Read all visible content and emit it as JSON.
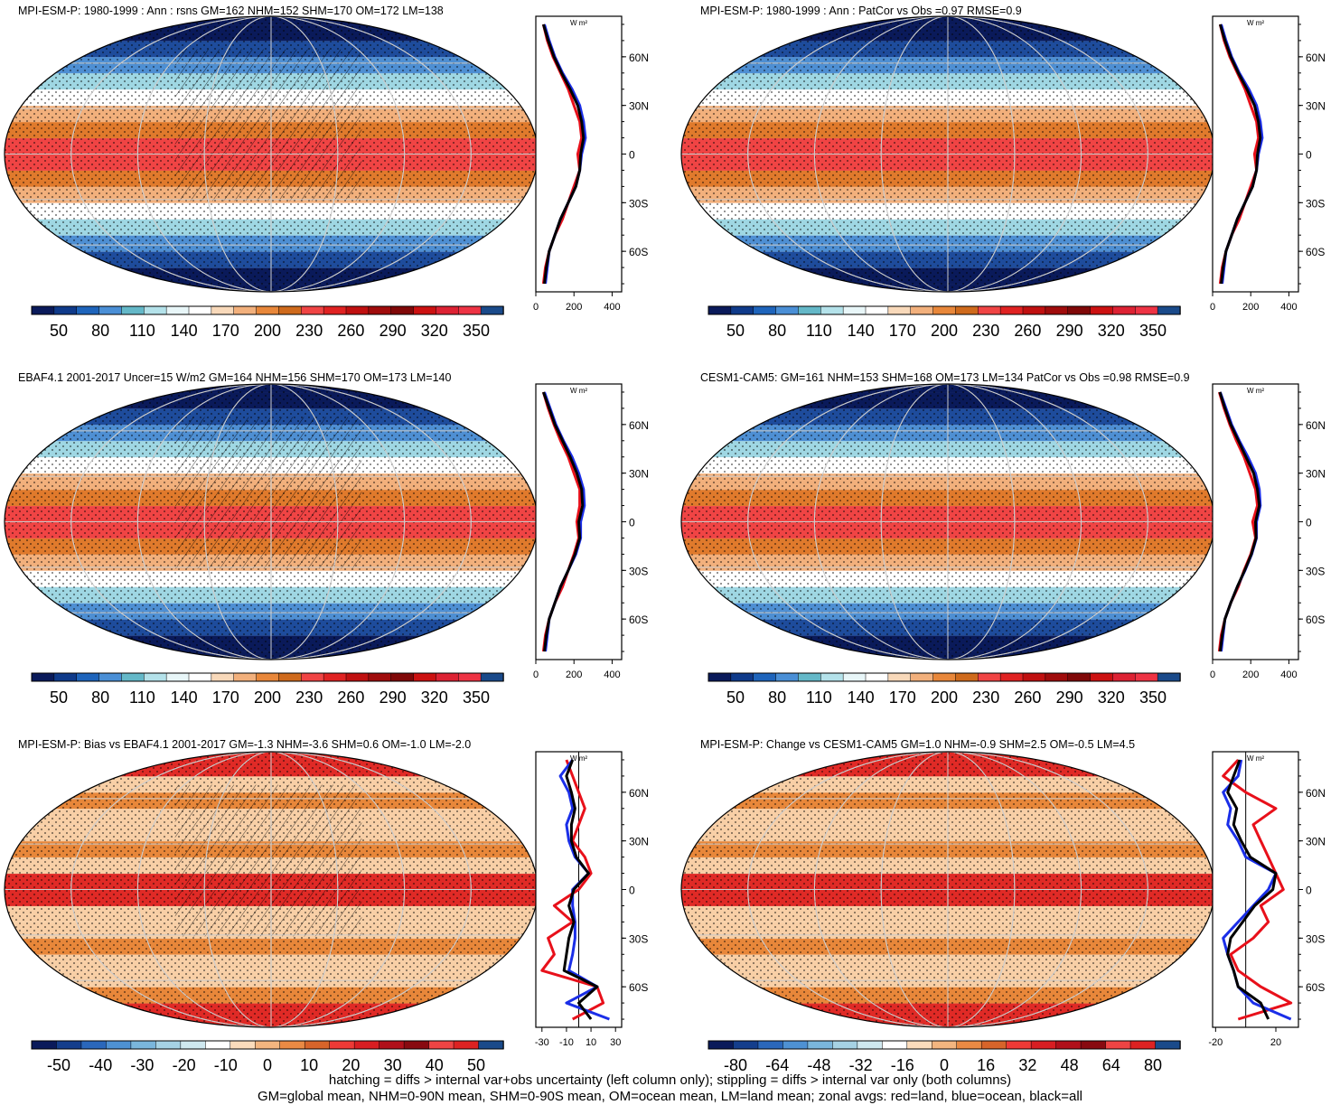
{
  "footer": {
    "line1": "hatching = diffs > internal var+obs uncertainty (left column only); stippling = diffs > internal var only (both columns)",
    "line2": "GM=global mean, NHM=0-90N mean, SHM=0-90S mean, OM=ocean mean, LM=land mean; zonal avgs: red=land, blue=ocean, black=all"
  },
  "colors": {
    "land_line": "#e8101a",
    "ocean_line": "#1a2ee8",
    "all_line": "#000000",
    "climo_scale": [
      "#0a1a5a",
      "#0f3a8a",
      "#1e64bb",
      "#4a8fd6",
      "#64b8c8",
      "#b4e2ea",
      "#e8f6f8",
      "#ffffff",
      "#f8d9ba",
      "#f2b07c",
      "#e8873a",
      "#cf6a1c",
      "#f04444",
      "#e02222",
      "#c01010",
      "#a00c0c",
      "#800808",
      "#cc1111",
      "#dd2233",
      "#ee3344",
      "#1a4a8a"
    ],
    "diff_scale": [
      "#0a1a5a",
      "#143e8c",
      "#2a67bb",
      "#4e91d3",
      "#7ab6dc",
      "#a6d2e4",
      "#cfe8ef",
      "#ffffff",
      "#fbdcbc",
      "#f3b57f",
      "#ea8a44",
      "#d7642a",
      "#ee3a36",
      "#d81e22",
      "#b0101a",
      "#880a10",
      "#ee4444",
      "#dd2222",
      "#1a4a8a"
    ]
  },
  "chart_data": [
    {
      "id": "p1",
      "type": "map-with-zonal-profile",
      "title": "MPI-ESM-P: 1980-1999 : Ann : rsns GM=162 NHM=152 SHM=170 OM=172 LM=138",
      "colorbar_labels": [
        "50",
        "80",
        "110",
        "140",
        "170",
        "200",
        "230",
        "260",
        "290",
        "320",
        "350"
      ],
      "zonal": {
        "unit": "W m²",
        "xlim": [
          0,
          450
        ],
        "xticks": [
          0,
          200,
          400
        ],
        "ylim": [
          -85,
          85
        ],
        "yticks": [
          "60N",
          "30N",
          "0",
          "30S",
          "60S"
        ],
        "lat": [
          80,
          70,
          60,
          50,
          40,
          30,
          20,
          10,
          0,
          -10,
          -20,
          -30,
          -40,
          -50,
          -60,
          -70,
          -80
        ],
        "land": [
          40,
          60,
          90,
          130,
          170,
          200,
          230,
          240,
          220,
          230,
          200,
          170,
          140,
          100,
          70,
          50,
          40
        ],
        "ocean": [
          45,
          70,
          100,
          140,
          190,
          230,
          250,
          260,
          240,
          230,
          210,
          170,
          130,
          100,
          70,
          60,
          50
        ],
        "all": [
          40,
          65,
          95,
          135,
          180,
          220,
          240,
          250,
          235,
          230,
          210,
          170,
          130,
          100,
          70,
          55,
          45
        ]
      }
    },
    {
      "id": "p2",
      "type": "map-with-zonal-profile",
      "title": "MPI-ESM-P: 1980-1999 : Ann : PatCor vs Obs =0.97 RMSE=0.9",
      "colorbar_labels": [
        "50",
        "80",
        "110",
        "140",
        "170",
        "200",
        "230",
        "260",
        "290",
        "320",
        "350"
      ],
      "zonal": {
        "unit": "W m²",
        "xlim": [
          0,
          450
        ],
        "xticks": [
          0,
          200,
          400
        ],
        "ylim": [
          -85,
          85
        ],
        "yticks": [
          "60N",
          "30N",
          "0",
          "30S",
          "60S"
        ],
        "lat": [
          80,
          70,
          60,
          50,
          40,
          30,
          20,
          10,
          0,
          -10,
          -20,
          -30,
          -40,
          -50,
          -60,
          -70,
          -80
        ],
        "land": [
          40,
          60,
          90,
          130,
          170,
          200,
          230,
          240,
          220,
          230,
          200,
          170,
          140,
          100,
          70,
          50,
          40
        ],
        "ocean": [
          45,
          70,
          100,
          140,
          190,
          230,
          250,
          260,
          240,
          230,
          210,
          170,
          130,
          100,
          70,
          60,
          50
        ],
        "all": [
          40,
          65,
          95,
          135,
          180,
          220,
          240,
          250,
          235,
          230,
          210,
          170,
          130,
          100,
          70,
          55,
          45
        ]
      }
    },
    {
      "id": "p3",
      "type": "map-with-zonal-profile",
      "title": "EBAF4.1 2001-2017 Uncer=15 W/m2 GM=164 NHM=156 SHM=170 OM=173 LM=140",
      "colorbar_labels": [
        "50",
        "80",
        "110",
        "140",
        "170",
        "200",
        "230",
        "260",
        "290",
        "320",
        "350"
      ],
      "zonal": {
        "unit": "W m²",
        "xlim": [
          0,
          450
        ],
        "xticks": [
          0,
          200,
          400
        ],
        "ylim": [
          -85,
          85
        ],
        "yticks": [
          "60N",
          "30N",
          "0",
          "30S",
          "60S"
        ],
        "lat": [
          80,
          70,
          60,
          50,
          40,
          30,
          20,
          10,
          0,
          -10,
          -20,
          -30,
          -40,
          -50,
          -60,
          -70,
          -80
        ],
        "land": [
          40,
          65,
          95,
          130,
          170,
          200,
          230,
          230,
          215,
          225,
          200,
          170,
          140,
          100,
          70,
          50,
          40
        ],
        "ocean": [
          45,
          75,
          105,
          145,
          190,
          225,
          250,
          255,
          235,
          235,
          210,
          170,
          130,
          100,
          70,
          60,
          50
        ],
        "all": [
          40,
          70,
          100,
          140,
          180,
          215,
          240,
          245,
          225,
          230,
          205,
          170,
          130,
          100,
          70,
          55,
          45
        ]
      }
    },
    {
      "id": "p4",
      "type": "map-with-zonal-profile",
      "title": "CESM1-CAM5: GM=161 NHM=153 SHM=168 OM=173 LM=134 PatCor vs Obs =0.98 RMSE=0.9",
      "colorbar_labels": [
        "50",
        "80",
        "110",
        "140",
        "170",
        "200",
        "230",
        "260",
        "290",
        "320",
        "350"
      ],
      "zonal": {
        "unit": "W m²",
        "xlim": [
          0,
          450
        ],
        "xticks": [
          0,
          200,
          400
        ],
        "ylim": [
          -85,
          85
        ],
        "yticks": [
          "60N",
          "30N",
          "0",
          "30S",
          "60S"
        ],
        "lat": [
          80,
          70,
          60,
          50,
          40,
          30,
          20,
          10,
          0,
          -10,
          -20,
          -30,
          -40,
          -50,
          -60,
          -70,
          -80
        ],
        "land": [
          35,
          60,
          90,
          125,
          165,
          195,
          225,
          235,
          210,
          225,
          200,
          165,
          135,
          95,
          65,
          45,
          35
        ],
        "ocean": [
          40,
          70,
          100,
          140,
          185,
          225,
          245,
          250,
          230,
          230,
          205,
          170,
          130,
          95,
          65,
          55,
          45
        ],
        "all": [
          38,
          65,
          95,
          135,
          175,
          215,
          235,
          245,
          225,
          228,
          203,
          168,
          130,
          95,
          65,
          50,
          40
        ]
      }
    },
    {
      "id": "p5",
      "type": "map-with-zonal-profile",
      "title": "MPI-ESM-P: Bias vs EBAF4.1 2001-2017 GM=-1.3 NHM=-3.6 SHM=0.6 OM=-1.0 LM=-2.0",
      "colorbar_labels": [
        "-50",
        "-40",
        "-30",
        "-20",
        "-10",
        "0",
        "10",
        "20",
        "30",
        "40",
        "50"
      ],
      "zonal": {
        "unit": "W m²",
        "xlim": [
          -35,
          35
        ],
        "xticks": [
          -30,
          -10,
          10,
          30
        ],
        "ylim": [
          -85,
          85
        ],
        "yticks": [
          "60N",
          "30N",
          "0",
          "30S",
          "60S"
        ],
        "lat": [
          80,
          70,
          60,
          50,
          40,
          30,
          20,
          10,
          0,
          -10,
          -20,
          -30,
          -40,
          -50,
          -60,
          -70,
          -80
        ],
        "land": [
          -10,
          -5,
          0,
          5,
          0,
          -5,
          5,
          10,
          0,
          -20,
          -5,
          -25,
          -20,
          -30,
          15,
          20,
          -5
        ],
        "ocean": [
          -5,
          -15,
          -8,
          -5,
          -10,
          -8,
          -3,
          8,
          -5,
          -5,
          -3,
          -3,
          -5,
          -8,
          15,
          -10,
          25
        ],
        "all": [
          -5,
          -10,
          -6,
          -3,
          -6,
          -6,
          -2,
          8,
          -4,
          -8,
          -4,
          -8,
          -10,
          -12,
          15,
          0,
          10
        ]
      }
    },
    {
      "id": "p6",
      "type": "map-with-zonal-profile",
      "title": "MPI-ESM-P: Change vs CESM1-CAM5 GM=1.0 NHM=-0.9 SHM=2.5 OM=-0.5 LM=4.5",
      "colorbar_labels": [
        "-80",
        "-64",
        "-48",
        "-32",
        "-16",
        "0",
        "16",
        "32",
        "48",
        "64",
        "80"
      ],
      "zonal": {
        "unit": "W m²",
        "xlim": [
          -22,
          35
        ],
        "xticks": [
          -20,
          20
        ],
        "ylim": [
          -85,
          85
        ],
        "yticks": [
          "60N",
          "30N",
          "0",
          "30S",
          "60S"
        ],
        "lat": [
          80,
          70,
          60,
          50,
          40,
          30,
          20,
          10,
          0,
          -10,
          -20,
          -30,
          -40,
          -50,
          -60,
          -70,
          -80
        ],
        "land": [
          -5,
          -15,
          0,
          20,
          5,
          10,
          15,
          20,
          25,
          10,
          15,
          5,
          -10,
          -5,
          10,
          30,
          -5
        ],
        "ocean": [
          -3,
          -5,
          -15,
          -10,
          -12,
          -5,
          0,
          20,
          15,
          5,
          -5,
          -15,
          -12,
          -8,
          -5,
          5,
          30
        ],
        "all": [
          -4,
          -8,
          -12,
          -6,
          -8,
          -3,
          3,
          20,
          18,
          6,
          -2,
          -10,
          -12,
          -8,
          -5,
          10,
          15
        ]
      }
    }
  ]
}
